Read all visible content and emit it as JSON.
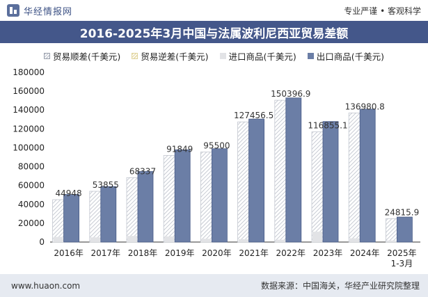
{
  "header": {
    "brand_name": "华经情报网",
    "slogan": "专业严谨 • 客观科学"
  },
  "chart_data": {
    "type": "bar",
    "title": "2016-2025年3月中国与法属波利尼西亚贸易差额",
    "categories": [
      "2016年",
      "2017年",
      "2018年",
      "2019年",
      "2020年",
      "2021年",
      "2022年",
      "2023年",
      "2024年",
      "2025年\n1-3月"
    ],
    "series": [
      {
        "name": "贸易顺差(千美元)",
        "values": [
          44948,
          53855,
          68337,
          91849,
          95500,
          127456.5,
          150396.9,
          116855.1,
          136980.8,
          24815.9
        ],
        "labels": [
          "44948",
          "53855",
          "68337",
          "91849",
          "95500",
          "127456.5",
          "150396.9",
          "116855.1",
          "136980.8",
          "24815.9"
        ]
      },
      {
        "name": "贸易逆差(千美元)",
        "values": [
          0,
          0,
          0,
          0,
          0,
          0,
          0,
          0,
          0,
          0
        ]
      },
      {
        "name": "进口商品(千美元)",
        "values": [
          5500,
          5000,
          6500,
          6000,
          3500,
          3000,
          2500,
          11000,
          4000,
          1700
        ]
      },
      {
        "name": "出口商品(千美元)",
        "values": [
          50448,
          58855,
          74837,
          97849,
          99000,
          130456.5,
          152896.9,
          127855.1,
          140980.8,
          26515.9
        ]
      }
    ],
    "ylim": [
      0,
      180000
    ],
    "yticks": [
      0,
      20000,
      40000,
      60000,
      80000,
      100000,
      120000,
      140000,
      160000,
      180000
    ],
    "xlabel": "",
    "ylabel": "",
    "grid": false,
    "legend_position": "top",
    "colors": {
      "surplus_stripe": "#c7cbd3",
      "deficit": "#e8dcae",
      "import": "#e2e3e6",
      "export": "#6b7ea6",
      "export_edge": "#4a5d88"
    }
  },
  "footer": {
    "website": "www.huaon.com",
    "source": "数据来源：中国海关，华经产业研究院整理"
  }
}
